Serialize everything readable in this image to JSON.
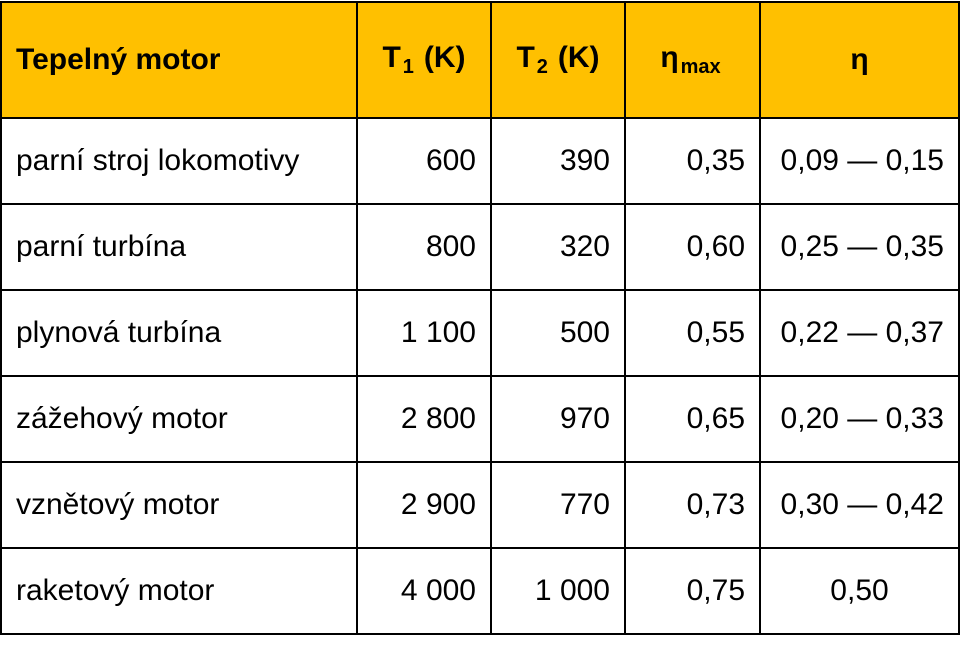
{
  "table": {
    "header": [
      {
        "text": "Tepelný motor"
      },
      {
        "main": "T",
        "sub": "1",
        "rest": "(K)"
      },
      {
        "main": "T",
        "sub": "2",
        "rest": "(K)"
      },
      {
        "main": "η",
        "sub": "max"
      },
      {
        "text": "η"
      }
    ],
    "rows": [
      [
        "parní stroj lokomotivy",
        "600",
        "390",
        "0,35",
        "0,09 — 0,15"
      ],
      [
        "parní turbína",
        "800",
        "320",
        "0,60",
        "0,25 — 0,35"
      ],
      [
        "plynová turbína",
        "1 100",
        "500",
        "0,55",
        "0,22 — 0,37"
      ],
      [
        "zážehový motor",
        "2 800",
        "970",
        "0,65",
        "0,20 — 0,33"
      ],
      [
        "vznětový motor",
        "2 900",
        "770",
        "0,73",
        "0,30 — 0,42"
      ],
      [
        "raketový motor",
        "4 000",
        "1 000",
        "0,75",
        "0,50"
      ]
    ]
  }
}
